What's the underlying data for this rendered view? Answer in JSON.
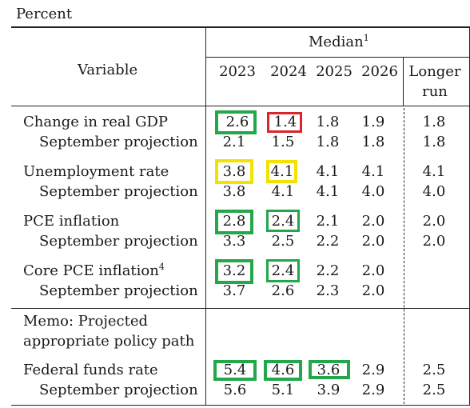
{
  "units_label": "Percent",
  "header": {
    "variable": "Variable",
    "median": "Median",
    "median_note": "1",
    "years": [
      "2023",
      "2024",
      "2025",
      "2026"
    ],
    "longer_run_line1": "Longer",
    "longer_run_line2": "run"
  },
  "rows": {
    "gdp": {
      "label": "Change in real GDP",
      "values": [
        "2.6",
        "1.4",
        "1.8",
        "1.9",
        "1.8"
      ]
    },
    "gdp_sep": {
      "label": "September projection",
      "values": [
        "2.1",
        "1.5",
        "1.8",
        "1.8",
        "1.8"
      ]
    },
    "unemp": {
      "label": "Unemployment rate",
      "values": [
        "3.8",
        "4.1",
        "4.1",
        "4.1",
        "4.1"
      ]
    },
    "unemp_sep": {
      "label": "September projection",
      "values": [
        "3.8",
        "4.1",
        "4.1",
        "4.0",
        "4.0"
      ]
    },
    "pce": {
      "label": "PCE inflation",
      "values": [
        "2.8",
        "2.4",
        "2.1",
        "2.0",
        "2.0"
      ]
    },
    "pce_sep": {
      "label": "September projection",
      "values": [
        "3.3",
        "2.5",
        "2.2",
        "2.0",
        "2.0"
      ]
    },
    "core": {
      "label": "Core PCE inflation",
      "note": "4",
      "values": [
        "3.2",
        "2.4",
        "2.2",
        "2.0"
      ]
    },
    "core_sep": {
      "label": "September projection",
      "values": [
        "3.7",
        "2.6",
        "2.3",
        "2.0"
      ]
    },
    "memo_line1": "Memo: Projected",
    "memo_line2": "appropriate policy path",
    "ffr": {
      "label": "Federal funds rate",
      "values": [
        "5.4",
        "4.6",
        "3.6",
        "2.9",
        "2.5"
      ]
    },
    "ffr_sep": {
      "label": "September projection",
      "values": [
        "5.6",
        "5.1",
        "3.9",
        "2.9",
        "2.5"
      ]
    }
  },
  "highlight_colors": {
    "green": "#21a84a",
    "yellow": "#f3e200",
    "red": "#d8262b"
  }
}
